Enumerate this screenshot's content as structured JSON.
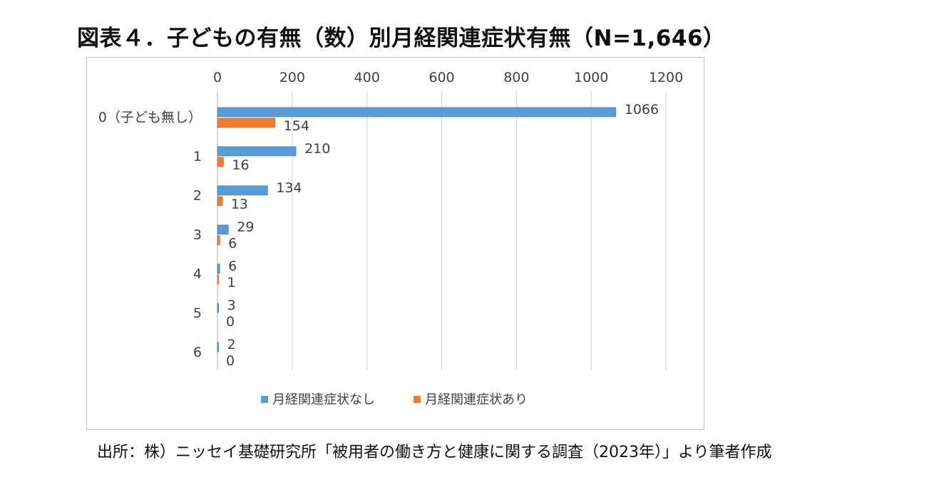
{
  "title": "図表４．子どもの有無（数）別月経関連症状有無（N=1,646）",
  "source": "出所：株）ニッセイ基礎研究所「被用者の働き方と健康に関する調査（2023年）」より筆者作成",
  "chart_data": {
    "type": "bar",
    "orientation": "horizontal",
    "categories": [
      "0（子ども無し）",
      "1",
      "2",
      "3",
      "4",
      "5",
      "6"
    ],
    "series": [
      {
        "name": "月経関連症状なし",
        "color": "#5B9BD5",
        "values": [
          1066,
          210,
          134,
          29,
          6,
          3,
          2
        ]
      },
      {
        "name": "月経関連症状あり",
        "color": "#ED7D31",
        "values": [
          154,
          16,
          13,
          6,
          1,
          0,
          0
        ]
      }
    ],
    "xlim": [
      0,
      1200
    ],
    "xticks": [
      0,
      200,
      400,
      600,
      800,
      1000,
      1200
    ],
    "grid": true,
    "axis_position": "top",
    "legend_position": "bottom"
  }
}
